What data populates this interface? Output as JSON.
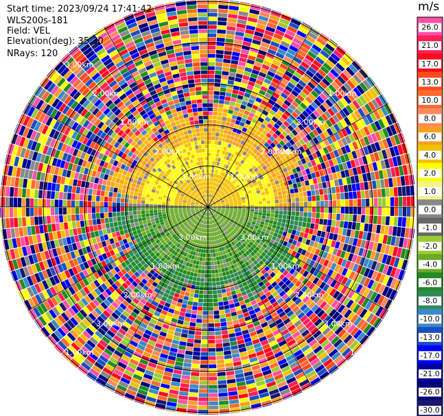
{
  "meta": {
    "start_time": "Start time: 2023/09/24 17:41:42",
    "instrument": "WLS200s-181",
    "field": "Field: VEL",
    "elevation": "Elevation(deg): 35.30",
    "nrays": "NRays: 120"
  },
  "colorbar": {
    "unit": "m/s",
    "ticks": [
      "26.0",
      "21.0",
      "17.0",
      "13.0",
      "10.0",
      "8.0",
      "6.0",
      "4.0",
      "2.0",
      "1.0",
      "0.0",
      "-1.0",
      "-2.0",
      "-4.0",
      "-6.0",
      "-8.0",
      "-10.0",
      "-13.0",
      "-17.0",
      "-21.0",
      "-26.0",
      "-30.0"
    ],
    "colors": [
      "#ff4fa8",
      "#ff1e5a",
      "#ff0b1e",
      "#ff4a1c",
      "#ff6a2e",
      "#ff8a5a",
      "#f7a020",
      "#f5c000",
      "#ffff00",
      "#f5f58a",
      "#888888",
      "#666666",
      "#9bcc32",
      "#6aaa28",
      "#228b22",
      "#2e8b57",
      "#3a8ac8",
      "#1a4ec0",
      "#0000ff",
      "#0000a0",
      "#000078",
      "#191970"
    ]
  },
  "chart_data": {
    "type": "ppi",
    "field": "VEL",
    "units": "m/s",
    "nrays": 120,
    "elevation_deg": 35.3,
    "range_ring_labels_km": [
      {
        "label": "1.00km"
      },
      {
        "label": "2.00km"
      },
      {
        "label": "3.00km"
      }
    ],
    "value_range": [
      -30.0,
      26.0
    ]
  },
  "ring_labels": [
    {
      "text": "3.00km"
    },
    {
      "text": "2.00km"
    },
    {
      "text": "1.00km"
    },
    {
      "text": "1.00km"
    },
    {
      "text": "2.00km"
    },
    {
      "text": "3.00km"
    },
    {
      "text": "1.00km"
    },
    {
      "text": "1.00km"
    },
    {
      "text": "2.00km"
    },
    {
      "text": "2.00km"
    },
    {
      "text": "3.00km"
    },
    {
      "text": "3.00km"
    },
    {
      "text": "1.00km"
    },
    {
      "text": "1.00km"
    },
    {
      "text": "2.00km"
    },
    {
      "text": "2.00km"
    },
    {
      "text": "3.00km"
    },
    {
      "text": "3.00km"
    },
    {
      "text": "1.00km"
    },
    {
      "text": "1.00km"
    }
  ]
}
